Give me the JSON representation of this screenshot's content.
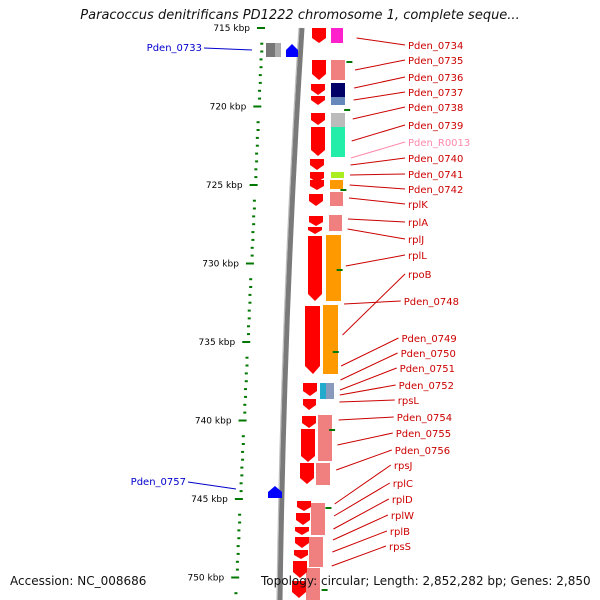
{
  "title": "Paracoccus denitrificans PD1222 chromosome 1, complete seque...",
  "accession": "Accession: NC_008686",
  "topology": "Topology: circular; Length: 2,852,282 bp; Genes: 2,850",
  "colors": {
    "forward_gene": "#ff0000",
    "reverse_gene": "#0000ff",
    "tick": "#007700",
    "backbone": "#777777",
    "label_red": "#cc0000",
    "label_blue": "#0000cc",
    "label_pink": "#ff88aa"
  },
  "kbp_ticks": [
    {
      "kbp": 715,
      "label": "715 kbp"
    },
    {
      "kbp": 720,
      "label": "720 kbp"
    },
    {
      "kbp": 725,
      "label": "725 kbp"
    },
    {
      "kbp": 730,
      "label": "730 kbp"
    },
    {
      "kbp": 735,
      "label": "735 kbp"
    },
    {
      "kbp": 740,
      "label": "740 kbp"
    },
    {
      "kbp": 745,
      "label": "745 kbp"
    },
    {
      "kbp": 750,
      "label": "750 kbp"
    }
  ],
  "right_labels": [
    {
      "text": "Pden_0734",
      "color": "#cc0000"
    },
    {
      "text": "Pden_0735",
      "color": "#cc0000"
    },
    {
      "text": "Pden_0736",
      "color": "#cc0000"
    },
    {
      "text": "Pden_0737",
      "color": "#cc0000"
    },
    {
      "text": "Pden_0738",
      "color": "#cc0000"
    },
    {
      "text": "Pden_0739",
      "color": "#cc0000"
    },
    {
      "text": "Pden_R0013",
      "color": "#ff88aa"
    },
    {
      "text": "Pden_0740",
      "color": "#cc0000"
    },
    {
      "text": "Pden_0741",
      "color": "#cc0000"
    },
    {
      "text": "Pden_0742",
      "color": "#cc0000"
    },
    {
      "text": "rplK",
      "color": "#cc0000"
    },
    {
      "text": "rplA",
      "color": "#cc0000"
    },
    {
      "text": "rplJ",
      "color": "#cc0000"
    },
    {
      "text": "rplL",
      "color": "#cc0000"
    },
    {
      "text": "rpoB",
      "color": "#cc0000"
    },
    {
      "text": "Pden_0748",
      "color": "#cc0000"
    },
    {
      "text": "Pden_0749",
      "color": "#cc0000"
    },
    {
      "text": "Pden_0750",
      "color": "#cc0000"
    },
    {
      "text": "Pden_0751",
      "color": "#cc0000"
    },
    {
      "text": "Pden_0752",
      "color": "#cc0000"
    },
    {
      "text": "rpsL",
      "color": "#cc0000"
    },
    {
      "text": "Pden_0754",
      "color": "#cc0000"
    },
    {
      "text": "Pden_0755",
      "color": "#cc0000"
    },
    {
      "text": "Pden_0756",
      "color": "#cc0000"
    },
    {
      "text": "rpsJ",
      "color": "#cc0000"
    },
    {
      "text": "rplC",
      "color": "#cc0000"
    },
    {
      "text": "rplD",
      "color": "#cc0000"
    },
    {
      "text": "rplW",
      "color": "#cc0000"
    },
    {
      "text": "rplB",
      "color": "#cc0000"
    },
    {
      "text": "rpsS",
      "color": "#cc0000"
    }
  ],
  "left_labels": [
    {
      "text": "Pden_0733",
      "color": "#0000cc"
    },
    {
      "text": "Pden_0757",
      "color": "#0000cc"
    }
  ]
}
